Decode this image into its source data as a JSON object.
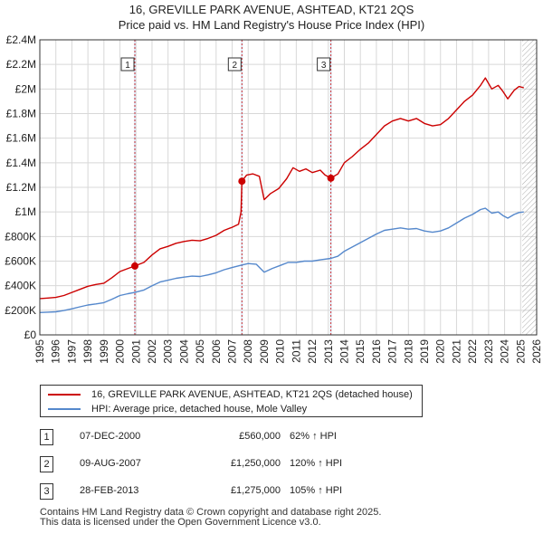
{
  "title_line1": "16, GREVILLE PARK AVENUE, ASHTEAD, KT21 2QS",
  "title_line2": "Price paid vs. HM Land Registry's House Price Index (HPI)",
  "colors": {
    "property": "#cc0000",
    "hpi": "#5588cc",
    "sale_band": "#dde6f5",
    "sale_line": "#cc3333",
    "grid": "#d8d8d8",
    "future_hatch": "#888888"
  },
  "chart_data": {
    "type": "line",
    "x_range": [
      1995,
      2026
    ],
    "y_range": [
      0,
      2400000
    ],
    "x_ticks": [
      "1995",
      "1996",
      "1997",
      "1998",
      "1999",
      "2000",
      "2001",
      "2002",
      "2003",
      "2004",
      "2005",
      "2006",
      "2007",
      "2008",
      "2009",
      "2010",
      "2011",
      "2012",
      "2013",
      "2014",
      "2015",
      "2016",
      "2017",
      "2018",
      "2019",
      "2020",
      "2021",
      "2022",
      "2023",
      "2024",
      "2025",
      "2026"
    ],
    "y_ticks": [
      {
        "value": 0,
        "label": "£0"
      },
      {
        "value": 200000,
        "label": "£200K"
      },
      {
        "value": 400000,
        "label": "£400K"
      },
      {
        "value": 600000,
        "label": "£600K"
      },
      {
        "value": 800000,
        "label": "£800K"
      },
      {
        "value": 1000000,
        "label": "£1M"
      },
      {
        "value": 1200000,
        "label": "£1.2M"
      },
      {
        "value": 1400000,
        "label": "£1.4M"
      },
      {
        "value": 1600000,
        "label": "£1.6M"
      },
      {
        "value": 1800000,
        "label": "£1.8M"
      },
      {
        "value": 2000000,
        "label": "£2M"
      },
      {
        "value": 2200000,
        "label": "£2.2M"
      },
      {
        "value": 2400000,
        "label": "£2.4M"
      }
    ],
    "future_from": 2025.1,
    "series": [
      {
        "name": "16, GREVILLE PARK AVENUE, ASHTEAD, KT21 2QS (detached house)",
        "color": "#cc0000",
        "points": [
          [
            1995.0,
            295000
          ],
          [
            1995.5,
            300000
          ],
          [
            1996.0,
            305000
          ],
          [
            1996.5,
            320000
          ],
          [
            1997.0,
            345000
          ],
          [
            1997.5,
            370000
          ],
          [
            1998.0,
            395000
          ],
          [
            1998.5,
            410000
          ],
          [
            1999.0,
            420000
          ],
          [
            1999.5,
            465000
          ],
          [
            2000.0,
            515000
          ],
          [
            2000.5,
            540000
          ],
          [
            2000.93,
            560000
          ],
          [
            2001.5,
            590000
          ],
          [
            2002.0,
            650000
          ],
          [
            2002.5,
            700000
          ],
          [
            2003.0,
            720000
          ],
          [
            2003.5,
            745000
          ],
          [
            2004.0,
            760000
          ],
          [
            2004.5,
            770000
          ],
          [
            2005.0,
            765000
          ],
          [
            2005.5,
            785000
          ],
          [
            2006.0,
            810000
          ],
          [
            2006.5,
            850000
          ],
          [
            2007.0,
            875000
          ],
          [
            2007.4,
            900000
          ],
          [
            2007.55,
            1000000
          ],
          [
            2007.61,
            1250000
          ],
          [
            2007.9,
            1300000
          ],
          [
            2008.3,
            1310000
          ],
          [
            2008.7,
            1290000
          ],
          [
            2009.0,
            1100000
          ],
          [
            2009.4,
            1150000
          ],
          [
            2009.9,
            1190000
          ],
          [
            2010.4,
            1270000
          ],
          [
            2010.8,
            1360000
          ],
          [
            2011.2,
            1330000
          ],
          [
            2011.6,
            1350000
          ],
          [
            2012.0,
            1320000
          ],
          [
            2012.5,
            1340000
          ],
          [
            2012.8,
            1300000
          ],
          [
            2013.16,
            1275000
          ],
          [
            2013.6,
            1310000
          ],
          [
            2014.0,
            1400000
          ],
          [
            2014.5,
            1450000
          ],
          [
            2015.0,
            1510000
          ],
          [
            2015.5,
            1560000
          ],
          [
            2016.0,
            1630000
          ],
          [
            2016.5,
            1700000
          ],
          [
            2017.0,
            1740000
          ],
          [
            2017.5,
            1760000
          ],
          [
            2018.0,
            1740000
          ],
          [
            2018.5,
            1760000
          ],
          [
            2019.0,
            1720000
          ],
          [
            2019.5,
            1700000
          ],
          [
            2020.0,
            1710000
          ],
          [
            2020.5,
            1760000
          ],
          [
            2021.0,
            1830000
          ],
          [
            2021.5,
            1900000
          ],
          [
            2022.0,
            1950000
          ],
          [
            2022.5,
            2030000
          ],
          [
            2022.8,
            2090000
          ],
          [
            2023.2,
            2000000
          ],
          [
            2023.6,
            2030000
          ],
          [
            2023.9,
            1980000
          ],
          [
            2024.2,
            1920000
          ],
          [
            2024.6,
            1990000
          ],
          [
            2024.9,
            2020000
          ],
          [
            2025.2,
            2010000
          ]
        ]
      },
      {
        "name": "HPI: Average price, detached house, Mole Valley",
        "color": "#5588cc",
        "points": [
          [
            1995.0,
            182000
          ],
          [
            1995.5,
            185000
          ],
          [
            1996.0,
            188000
          ],
          [
            1996.5,
            198000
          ],
          [
            1997.0,
            212000
          ],
          [
            1997.5,
            228000
          ],
          [
            1998.0,
            243000
          ],
          [
            1998.5,
            252000
          ],
          [
            1999.0,
            262000
          ],
          [
            1999.5,
            290000
          ],
          [
            2000.0,
            320000
          ],
          [
            2000.5,
            335000
          ],
          [
            2000.93,
            345000
          ],
          [
            2001.5,
            365000
          ],
          [
            2002.0,
            400000
          ],
          [
            2002.5,
            430000
          ],
          [
            2003.0,
            445000
          ],
          [
            2003.5,
            460000
          ],
          [
            2004.0,
            470000
          ],
          [
            2004.5,
            478000
          ],
          [
            2005.0,
            475000
          ],
          [
            2005.5,
            488000
          ],
          [
            2006.0,
            505000
          ],
          [
            2006.5,
            530000
          ],
          [
            2007.0,
            548000
          ],
          [
            2007.61,
            568000
          ],
          [
            2008.0,
            580000
          ],
          [
            2008.5,
            575000
          ],
          [
            2009.0,
            510000
          ],
          [
            2009.5,
            540000
          ],
          [
            2010.0,
            565000
          ],
          [
            2010.5,
            590000
          ],
          [
            2011.0,
            590000
          ],
          [
            2011.5,
            600000
          ],
          [
            2012.0,
            600000
          ],
          [
            2012.5,
            610000
          ],
          [
            2013.16,
            622000
          ],
          [
            2013.6,
            640000
          ],
          [
            2014.0,
            680000
          ],
          [
            2014.5,
            715000
          ],
          [
            2015.0,
            750000
          ],
          [
            2015.5,
            785000
          ],
          [
            2016.0,
            820000
          ],
          [
            2016.5,
            850000
          ],
          [
            2017.0,
            860000
          ],
          [
            2017.5,
            870000
          ],
          [
            2018.0,
            860000
          ],
          [
            2018.5,
            865000
          ],
          [
            2019.0,
            845000
          ],
          [
            2019.5,
            835000
          ],
          [
            2020.0,
            845000
          ],
          [
            2020.5,
            870000
          ],
          [
            2021.0,
            910000
          ],
          [
            2021.5,
            950000
          ],
          [
            2022.0,
            980000
          ],
          [
            2022.5,
            1020000
          ],
          [
            2022.8,
            1030000
          ],
          [
            2023.2,
            990000
          ],
          [
            2023.6,
            1000000
          ],
          [
            2023.9,
            970000
          ],
          [
            2024.2,
            950000
          ],
          [
            2024.6,
            980000
          ],
          [
            2024.9,
            995000
          ],
          [
            2025.2,
            1000000
          ]
        ]
      }
    ],
    "sales": [
      {
        "num": "1",
        "x": 2000.93,
        "price": 560000,
        "date": "07-DEC-2000",
        "price_label": "£560,000",
        "hpi_label": "62% ↑ HPI"
      },
      {
        "num": "2",
        "x": 2007.61,
        "price": 1250000,
        "date": "09-AUG-2007",
        "price_label": "£1,250,000",
        "hpi_label": "120% ↑ HPI"
      },
      {
        "num": "3",
        "x": 2013.16,
        "price": 1275000,
        "date": "28-FEB-2013",
        "price_label": "£1,275,000",
        "hpi_label": "105% ↑ HPI"
      }
    ]
  },
  "legend": {
    "property_label": "16, GREVILLE PARK AVENUE, ASHTEAD, KT21 2QS (detached house)",
    "hpi_label": "HPI: Average price, detached house, Mole Valley"
  },
  "footer_line1": "Contains HM Land Registry data © Crown copyright and database right 2025.",
  "footer_line2": "This data is licensed under the Open Government Licence v3.0."
}
